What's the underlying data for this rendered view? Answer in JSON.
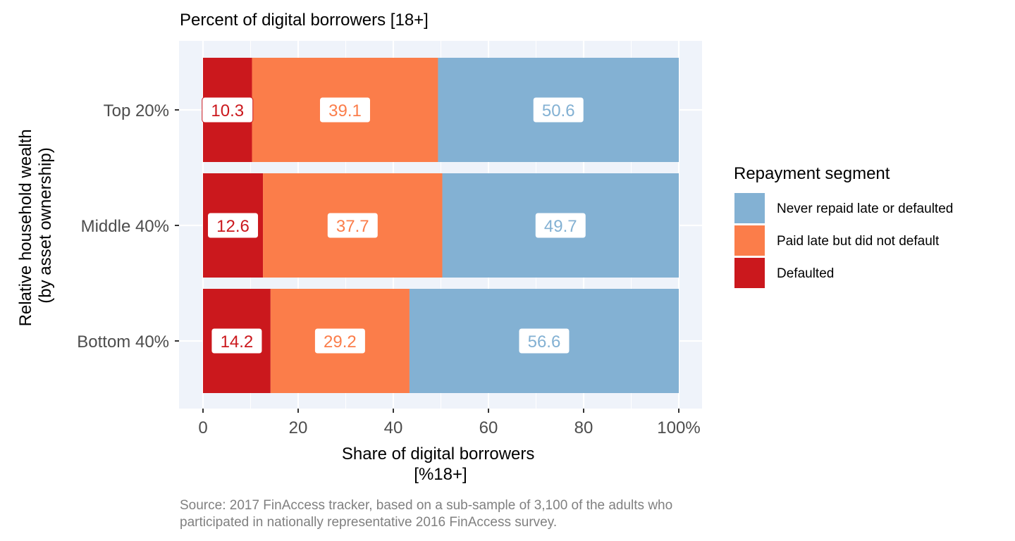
{
  "chart_data": {
    "type": "bar",
    "orientation": "horizontal",
    "stacked": true,
    "title": "Percent of digital borrowers [18+]",
    "xlabel_lines": [
      "Share of digital borrowers",
      "[%18+]"
    ],
    "ylabel_lines": [
      "Relative household wealth",
      "(by asset ownership)"
    ],
    "categories": [
      "Top 20%",
      "Middle 40%",
      "Bottom 40%"
    ],
    "xlim": [
      0,
      100
    ],
    "x_ticks": [
      {
        "value": 0,
        "label": "0"
      },
      {
        "value": 20,
        "label": "20"
      },
      {
        "value": 40,
        "label": "40"
      },
      {
        "value": 60,
        "label": "60"
      },
      {
        "value": 80,
        "label": "80"
      },
      {
        "value": 100,
        "label": "100%"
      }
    ],
    "grid": true,
    "legend": {
      "title": "Repayment segment",
      "placement": "right",
      "entries": [
        "Never repaid late or defaulted",
        "Paid late but did not default",
        "Defaulted"
      ]
    },
    "series": [
      {
        "name": "Defaulted",
        "color": "#cb181d",
        "values": [
          10.3,
          12.6,
          14.2
        ],
        "labels": [
          "10.3",
          "12.6",
          "14.2"
        ]
      },
      {
        "name": "Paid late but did not default",
        "color": "#fb7d4a",
        "values": [
          39.1,
          37.7,
          29.2
        ],
        "labels": [
          "39.1",
          "37.7",
          "29.2"
        ]
      },
      {
        "name": "Never repaid late or defaulted",
        "color": "#83b1d3",
        "values": [
          50.6,
          49.7,
          56.6
        ],
        "labels": [
          "50.6",
          "49.7",
          "56.6"
        ]
      }
    ],
    "caption_lines": [
      "Source: 2017 FinAccess tracker, based on a sub-sample of 3,100 of the adults who",
      "participated in nationally representative 2016 FinAccess survey."
    ],
    "colors": {
      "panel_background": "#eff3fa",
      "grid": "#ffffff",
      "axis_text": "#4d4d4d",
      "caption_text": "#808080"
    }
  }
}
